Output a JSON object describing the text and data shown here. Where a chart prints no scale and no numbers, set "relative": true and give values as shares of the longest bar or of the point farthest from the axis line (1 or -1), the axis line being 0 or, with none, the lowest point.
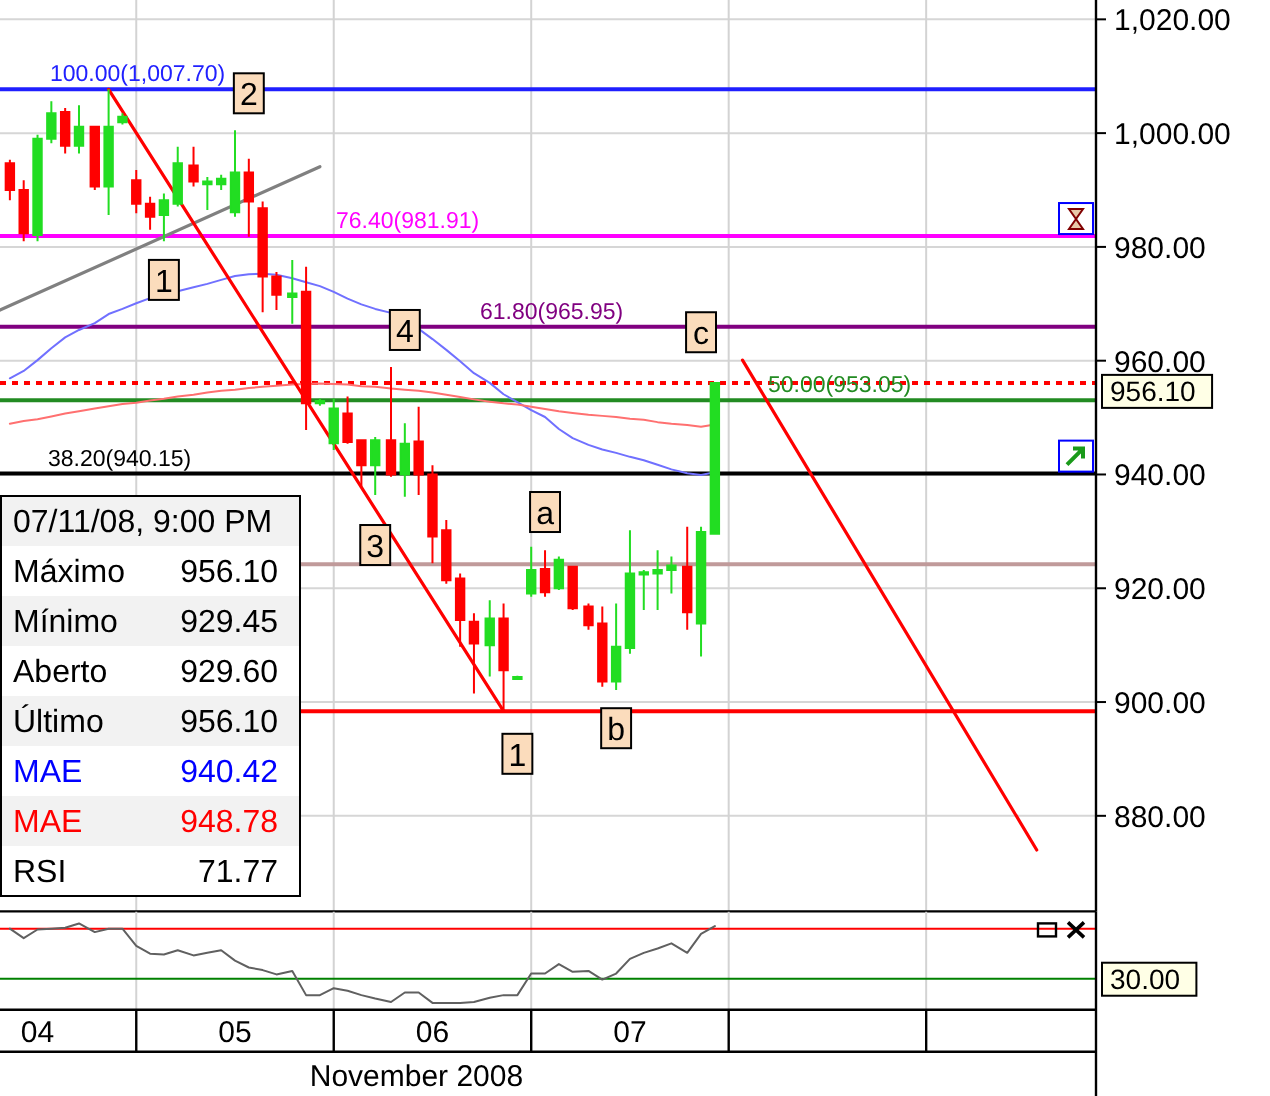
{
  "chart_data": [
    {
      "type": "candlestick",
      "x": [
        3.86,
        3.93,
        4,
        4.07,
        4.14,
        4.21,
        4.29,
        4.36,
        4.43,
        4.5,
        4.57,
        4.64,
        4.71,
        4.79,
        4.86,
        4.93,
        5,
        5.07,
        5.14,
        5.21,
        5.29,
        5.36,
        5.43,
        5.5,
        5.57,
        5.64,
        5.71,
        5.79,
        5.86,
        5.93,
        6,
        6.07,
        6.14,
        6.21,
        6.29,
        6.36,
        6.43,
        6.5,
        6.57,
        6.64,
        6.71,
        6.79,
        6.86,
        6.93,
        7,
        7.07,
        7.14,
        7.21,
        7.29,
        7.36,
        7.43
      ],
      "ohlc": [
        [
          994.7,
          995.3,
          988.2,
          990.0
        ],
        [
          990.0,
          991.7,
          981.0,
          982.4
        ],
        [
          982.1,
          999.7,
          981.0,
          999.0
        ],
        [
          999.0,
          1005.6,
          998.2,
          1003.5
        ],
        [
          1003.7,
          1004.4,
          996.4,
          997.8
        ],
        [
          997.8,
          1004.9,
          996.4,
          1001.1
        ],
        [
          1001.1,
          1001.3,
          990.0,
          990.6
        ],
        [
          990.6,
          1007.7,
          985.6,
          1001.1
        ],
        [
          1001.9,
          1003.5,
          1001.5,
          1002.9
        ],
        [
          991.7,
          993.5,
          985.9,
          987.6
        ],
        [
          987.6,
          988.8,
          983.0,
          985.3
        ],
        [
          985.6,
          989.4,
          981.0,
          988.2
        ],
        [
          987.6,
          997.6,
          987.1,
          994.7
        ],
        [
          994.3,
          997.6,
          990.6,
          991.5
        ],
        [
          991.0,
          992.3,
          986.5,
          991.5
        ],
        [
          991.0,
          992.7,
          990.0,
          992.0
        ],
        [
          986.1,
          1000.5,
          985.3,
          993.1
        ],
        [
          993.1,
          995.5,
          981.8,
          988.0
        ],
        [
          986.8,
          988.0,
          968.5,
          974.8
        ],
        [
          974.8,
          975.6,
          968.9,
          971.6
        ],
        [
          971.2,
          977.7,
          966.5,
          971.8
        ],
        [
          972.1,
          976.5,
          947.8,
          952.5
        ],
        [
          952.5,
          953.3,
          952.1,
          952.9
        ],
        [
          945.5,
          953.3,
          944.3,
          951.6
        ],
        [
          950.7,
          953.7,
          945.4,
          945.7
        ],
        [
          946.0,
          946.0,
          937.9,
          941.6
        ],
        [
          941.6,
          946.6,
          936.4,
          946.0
        ],
        [
          946.0,
          958.9,
          939.6,
          940.0
        ],
        [
          940.0,
          949.0,
          936.1,
          945.4
        ],
        [
          945.8,
          951.9,
          936.4,
          940.0
        ],
        [
          940.0,
          941.6,
          924.4,
          929.1
        ],
        [
          930.2,
          932.0,
          920.8,
          921.4
        ],
        [
          921.7,
          922.6,
          909.7,
          914.4
        ],
        [
          914.1,
          915.6,
          901.5,
          910.3
        ],
        [
          910.0,
          917.9,
          904.5,
          914.7
        ],
        [
          914.7,
          917.3,
          898.4,
          905.6
        ],
        [
          904.1,
          904.6,
          904.0,
          904.4
        ],
        [
          919.1,
          927.3,
          918.5,
          923.2
        ],
        [
          923.4,
          926.7,
          918.5,
          919.3
        ],
        [
          920.0,
          925.6,
          919.7,
          925.0
        ],
        [
          923.8,
          923.8,
          916.2,
          916.5
        ],
        [
          916.8,
          917.3,
          912.7,
          913.5
        ],
        [
          913.8,
          916.8,
          902.7,
          903.6
        ],
        [
          903.6,
          917.3,
          902.1,
          909.7
        ],
        [
          909.5,
          930.2,
          908.5,
          922.6
        ],
        [
          922.4,
          923.2,
          916.2,
          922.8
        ],
        [
          922.6,
          926.7,
          916.2,
          923.2
        ],
        [
          923.2,
          925.6,
          919.1,
          924.0
        ],
        [
          923.8,
          930.8,
          912.7,
          915.8
        ],
        [
          913.8,
          930.8,
          908.0,
          929.9
        ],
        [
          929.6,
          956.1,
          929.5,
          956.1
        ]
      ],
      "colors": [
        "#ff0000",
        "#ff0000",
        "#22dd22",
        "#22dd22",
        "#ff0000",
        "#22dd22",
        "#ff0000",
        "#22dd22",
        "#22dd22",
        "#ff0000",
        "#ff0000",
        "#22dd22",
        "#22dd22",
        "#ff0000",
        "#22dd22",
        "#22dd22",
        "#22dd22",
        "#ff0000",
        "#ff0000",
        "#ff0000",
        "#22dd22",
        "#ff0000",
        "#22dd22",
        "#22dd22",
        "#ff0000",
        "#ff0000",
        "#22dd22",
        "#ff0000",
        "#22dd22",
        "#ff0000",
        "#ff0000",
        "#ff0000",
        "#ff0000",
        "#ff0000",
        "#22dd22",
        "#ff0000",
        "#22dd22",
        "#22dd22",
        "#ff0000",
        "#22dd22",
        "#ff0000",
        "#ff0000",
        "#ff0000",
        "#22dd22",
        "#22dd22",
        "#22dd22",
        "#22dd22",
        "#22dd22",
        "#ff0000",
        "#22dd22",
        "#22dd22"
      ],
      "series": [
        {
          "type": "line",
          "color": "#7070ff",
          "values": [
            956.9,
            958.2,
            960.1,
            962.2,
            964.1,
            965.4,
            966.6,
            968.2,
            969.1,
            970.1,
            971.0,
            null,
            972.2,
            972.9,
            973.5,
            974.2,
            974.9,
            975.2,
            975.3,
            975.1,
            974.5,
            973.8,
            973.1,
            972.1,
            970.9,
            969.9,
            969.1,
            968.4,
            null,
            965.6,
            963.8,
            961.9,
            959.9,
            957.8,
            956.1,
            954.1,
            952.7,
            951.3,
            950.1,
            948.0,
            946.4,
            945.2,
            944.4,
            943.8,
            943.1,
            942.5,
            941.7,
            940.9,
            940.2,
            939.9,
            940.4
          ]
        },
        {
          "type": "line",
          "color": "#ff7070",
          "values": [
            948.9,
            949.4,
            949.7,
            950.2,
            950.7,
            951.1,
            951.6,
            952.0,
            952.4,
            952.6,
            953.0,
            953.3,
            953.7,
            954.0,
            954.4,
            954.7,
            954.9,
            955.2,
            955.4,
            955.6,
            955.8,
            955.9,
            956.0,
            955.9,
            955.8,
            955.5,
            955.4,
            955.1,
            954.9,
            954.7,
            954.4,
            954.0,
            953.6,
            953.2,
            952.8,
            952.5,
            952.3,
            951.9,
            951.5,
            951.1,
            950.8,
            950.5,
            950.3,
            950.1,
            949.8,
            949.6,
            949.2,
            948.9,
            948.7,
            948.4,
            948.8
          ]
        },
        {
          "type": "line",
          "color": "#808080",
          "x": [
            3.81,
            5.43
          ],
          "values": [
            968.9,
            994.1
          ]
        },
        {
          "type": "line",
          "color": "#ff0000",
          "x": [
            4.36,
            6.36
          ],
          "values": [
            1007.7,
            898.4
          ]
        },
        {
          "type": "line",
          "color": "#ff0000",
          "x": [
            7.57,
            9.06
          ],
          "values": [
            960.1,
            874
          ]
        }
      ],
      "xlim": [
        3.81,
        9.36
      ],
      "ylim": [
        863.2,
        1023.4
      ],
      "yticks": [
        {
          "value": 880,
          "label": "880.00"
        },
        {
          "value": 900,
          "label": "900.00"
        },
        {
          "value": 920,
          "label": "920.00"
        },
        {
          "value": 940,
          "label": "940.00"
        },
        {
          "value": 960,
          "label": "960.00"
        },
        {
          "value": 980,
          "label": "980.00"
        },
        {
          "value": 1000,
          "label": "1,000.00"
        },
        {
          "value": 1020,
          "label": "1,020.00"
        }
      ],
      "grid": "y",
      "tick_labels": "y",
      "ref_lines": [
        {
          "axis": "x",
          "value": 4.5,
          "color": "#d3d3d3"
        },
        {
          "axis": "x",
          "value": 5.5,
          "color": "#d3d3d3"
        },
        {
          "axis": "x",
          "value": 6.5,
          "color": "#d3d3d3"
        },
        {
          "axis": "x",
          "value": 7.5,
          "color": "#d3d3d3"
        },
        {
          "axis": "x",
          "value": 8.5,
          "color": "#d3d3d3"
        },
        {
          "axis": "y",
          "value": 1007.7,
          "label": "100.00(1,007.70)",
          "color": "#2020ff"
        },
        {
          "axis": "y",
          "value": 981.91,
          "label": "76.40(981.91)",
          "color": "#ff00ff"
        },
        {
          "axis": "y",
          "value": 965.95,
          "label": "61.80(965.95)",
          "color": "#800080"
        },
        {
          "axis": "y",
          "value": 956.1,
          "label": "956.10",
          "color": "#ff0000",
          "line_style": "dotted"
        },
        {
          "axis": "y",
          "value": 953.05,
          "label": "50.00(953.05)",
          "color": "#228b22"
        },
        {
          "axis": "y",
          "value": 940.15,
          "label": "38.20(940.15)",
          "color": "#000000"
        },
        {
          "axis": "y",
          "value": 924.2,
          "color": "#c09a9a"
        },
        {
          "axis": "y",
          "value": 898.4,
          "color": "#ff0000"
        }
      ],
      "annotations": [
        {
          "text": "2",
          "x": 5.07,
          "y": 1007
        },
        {
          "text": "1",
          "x": 4.64,
          "y": 974.2
        },
        {
          "text": "4",
          "x": 5.86,
          "y": 965.4
        },
        {
          "text": "c",
          "x": 7.36,
          "y": 965
        },
        {
          "text": "a",
          "x": 6.57,
          "y": 933.4
        },
        {
          "text": "3",
          "x": 5.71,
          "y": 927.6
        },
        {
          "text": "b",
          "x": 6.93,
          "y": 895.4
        },
        {
          "text": "1",
          "x": 6.43,
          "y": 890.9
        }
      ]
    },
    {
      "type": "other",
      "title": "07/11/08, 9:00 PM",
      "categories": [
        "Máximo",
        "Mínimo",
        "Aberto",
        "Último",
        "MAE",
        "MAE",
        "RSI"
      ],
      "value_labels": [
        "956.10",
        "929.45",
        "929.60",
        "956.10",
        "940.42",
        "948.78",
        "71.77"
      ],
      "colors": [
        "#000000",
        "#000000",
        "#000000",
        "#000000",
        "#0000ff",
        "#ff0000",
        "#000000"
      ]
    },
    {
      "type": "line",
      "relative": true,
      "x": [
        3.86,
        3.93,
        4,
        4.07,
        4.14,
        4.21,
        4.29,
        4.36,
        4.43,
        4.5,
        4.57,
        4.64,
        4.71,
        4.79,
        4.86,
        4.93,
        5,
        5.07,
        5.14,
        5.21,
        5.29,
        5.36,
        5.43,
        5.5,
        5.57,
        5.64,
        5.71,
        5.79,
        5.86,
        5.93,
        6,
        6.07,
        6.14,
        6.21,
        6.29,
        6.36,
        6.43,
        6.5,
        6.57,
        6.64,
        6.71,
        6.79,
        6.86,
        6.93,
        7,
        7.07,
        7.14,
        7.21,
        7.29,
        7.36,
        7.43
      ],
      "values": [
        0.94,
        0.83,
        0.93,
        0.94,
        0.95,
        1,
        0.9,
        0.94,
        0.94,
        0.74,
        0.65,
        0.64,
        0.69,
        0.63,
        0.66,
        0.69,
        0.57,
        0.49,
        0.46,
        0.41,
        0.45,
        0.17,
        0.17,
        0.25,
        0.22,
        0.17,
        0.13,
        0.09,
        0.2,
        0.2,
        0.08,
        0.08,
        0.08,
        0.09,
        0.14,
        0.17,
        0.17,
        0.42,
        0.42,
        0.53,
        0.44,
        0.45,
        0.35,
        0.42,
        0.59,
        0.66,
        0.71,
        0.77,
        0.66,
        0.88,
        0.97
      ],
      "color": "#606060",
      "xlim": [
        3.81,
        9.36
      ],
      "xticks": [
        {
          "value": 4,
          "label": "04"
        },
        {
          "value": 5,
          "label": "05"
        },
        {
          "value": 6,
          "label": "06"
        },
        {
          "value": 7,
          "label": "07"
        }
      ],
      "xlabel": "November 2008",
      "tick_labels": "x",
      "ref_lines": [
        {
          "axis": "x",
          "value": 4.5,
          "color": "#d3d3d3"
        },
        {
          "axis": "x",
          "value": 5.5,
          "color": "#d3d3d3"
        },
        {
          "axis": "x",
          "value": 6.5,
          "color": "#d3d3d3"
        },
        {
          "axis": "x",
          "value": 7.5,
          "color": "#d3d3d3"
        },
        {
          "axis": "x",
          "value": 8.5,
          "color": "#d3d3d3"
        },
        {
          "axis": "y",
          "value": 0.94,
          "color": "#ff0000"
        },
        {
          "axis": "y",
          "value": 0.36,
          "color": "#008000"
        }
      ],
      "annotations": [
        "30.00"
      ]
    }
  ]
}
